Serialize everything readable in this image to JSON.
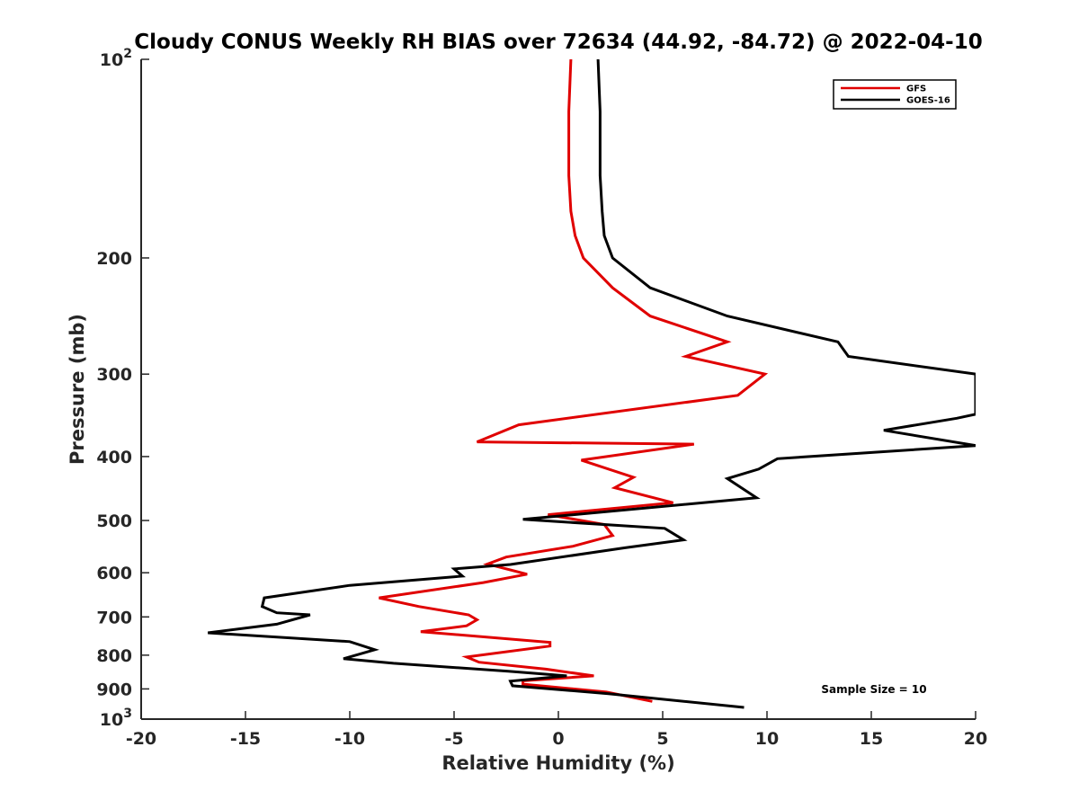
{
  "chart_data": {
    "type": "line",
    "title": "Cloudy CONUS Weekly RH BIAS over 72634 (44.92, -84.72) @ 2022-04-10",
    "xlabel": "Relative Humidity (%)",
    "ylabel": "Pressure (mb)",
    "xlim": [
      -20,
      20
    ],
    "ylim": [
      100,
      1000
    ],
    "y_scale": "log",
    "y_reversed": true,
    "x_ticks": [
      "-20",
      "-15",
      "-10",
      "-5",
      "0",
      "5",
      "10",
      "15",
      "20"
    ],
    "y_ticks": [
      {
        "value": 100,
        "base": "10",
        "exp": "2"
      },
      {
        "value": 200,
        "label": "200"
      },
      {
        "value": 300,
        "label": "300"
      },
      {
        "value": 400,
        "label": "400"
      },
      {
        "value": 500,
        "label": "500"
      },
      {
        "value": 600,
        "label": "600"
      },
      {
        "value": 700,
        "label": "700"
      },
      {
        "value": 800,
        "label": "800"
      },
      {
        "value": 900,
        "label": "900"
      },
      {
        "value": 1000,
        "base": "10",
        "exp": "3"
      }
    ],
    "grid": false,
    "legend_position": "top-right",
    "annotation": "Sample Size = 10",
    "series": [
      {
        "name": "GFS",
        "color": "#e00000",
        "x": [
          0.6,
          0.5,
          0.5,
          0.6,
          0.8,
          1.2,
          2.6,
          4.4,
          8.1,
          6.1,
          9.9,
          8.6,
          -1.9,
          -3.9,
          6.5,
          1.1,
          3.6,
          2.7,
          5.5,
          -0.5,
          2.2,
          2.6,
          0.7,
          -2.5,
          -3.4,
          -1.5,
          -3.6,
          -8.6,
          -6.7,
          -4.3,
          -3.9,
          -4.4,
          -6.6,
          -0.4,
          -0.4,
          -4.4,
          -3.8,
          -0.6,
          1.7,
          -1.7,
          -1.7,
          2.3,
          4.5
        ],
        "y": [
          100,
          120,
          150,
          170,
          185,
          200,
          222,
          245,
          268,
          282,
          300,
          323,
          358,
          380,
          383,
          405,
          430,
          446,
          470,
          490,
          507,
          527,
          547,
          568,
          582,
          603,
          621,
          655,
          675,
          695,
          707,
          722,
          737,
          765,
          775,
          805,
          820,
          840,
          860,
          875,
          885,
          910,
          940
        ]
      },
      {
        "name": "GOES-16",
        "color": "#000000",
        "x": [
          1.9,
          2.0,
          2.0,
          2.1,
          2.2,
          2.6,
          4.4,
          8.1,
          13.4,
          13.9,
          20.0,
          20.0,
          19.1,
          15.6,
          20.0,
          10.5,
          9.6,
          8.1,
          9.5,
          -1.7,
          5.1,
          6.0,
          3.2,
          -2.3,
          -5.0,
          -4.6,
          -10.0,
          -14.1,
          -14.2,
          -13.5,
          -11.9,
          -13.5,
          -16.8,
          -10.0,
          -8.8,
          -10.3,
          -7.9,
          -2.4,
          0.4,
          -2.3,
          -2.2,
          2.4,
          8.9
        ],
        "y": [
          100,
          120,
          150,
          170,
          185,
          200,
          222,
          245,
          268,
          282,
          300,
          345,
          350,
          365,
          385,
          403,
          418,
          432,
          462,
          498,
          514,
          535,
          550,
          583,
          592,
          607,
          627,
          655,
          675,
          690,
          695,
          718,
          740,
          763,
          785,
          810,
          823,
          846,
          860,
          876,
          890,
          915,
          960
        ]
      }
    ]
  }
}
